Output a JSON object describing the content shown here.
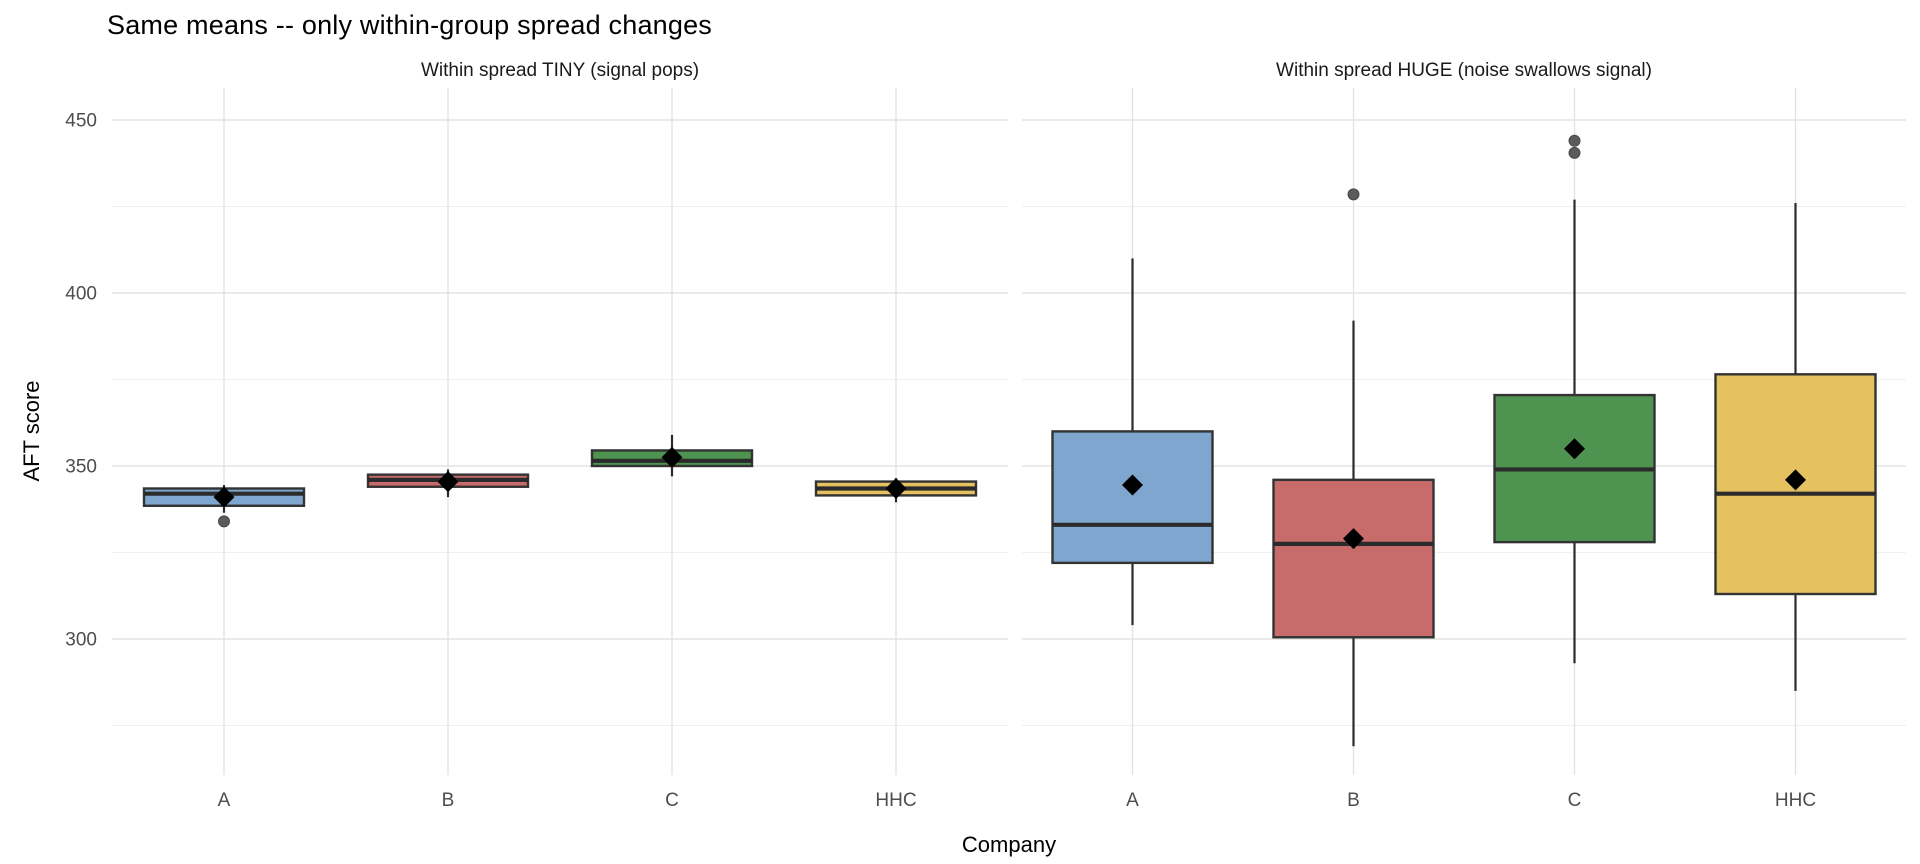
{
  "chart_data": {
    "type": "boxplot",
    "title": "Same means -- only within-group spread changes",
    "xlabel": "Company",
    "ylabel": "AFT score",
    "categories": [
      "A",
      "B",
      "C",
      "HHC"
    ],
    "category_colors": [
      "#7EA6CE",
      "#C86B6B",
      "#4E9350",
      "#E5C160"
    ],
    "y_axis": {
      "major_ticks": [
        450,
        400,
        350,
        300
      ],
      "minor_ticks": [
        425,
        375,
        325,
        275
      ],
      "range": [
        259,
        460
      ],
      "grid": "on",
      "major_grid_color": "#e3e3e3",
      "minor_grid_color": "#f0f0f0"
    },
    "style": {
      "box_stroke": "#333333",
      "median_stroke": "#2b2b2b",
      "whisker_stroke": "#2b2b2b",
      "mean_marker": "black-diamond",
      "mean_color": "#000000",
      "outlier_color": "#5b5b5b"
    },
    "panels": [
      {
        "title": "Within spread TINY (signal pops)",
        "boxes": [
          {
            "company": "A",
            "whisker_low": 336.5,
            "q1": 338.5,
            "median": 342,
            "q3": 343.5,
            "whisker_high": 344.5,
            "mean": 341,
            "outliers": [
              334
            ]
          },
          {
            "company": "B",
            "whisker_low": 341,
            "q1": 344,
            "median": 346,
            "q3": 347.5,
            "whisker_high": 349,
            "mean": 345.5,
            "outliers": []
          },
          {
            "company": "C",
            "whisker_low": 347,
            "q1": 350,
            "median": 351.5,
            "q3": 354.5,
            "whisker_high": 359,
            "mean": 352.5,
            "outliers": []
          },
          {
            "company": "HHC",
            "whisker_low": 339.5,
            "q1": 341.5,
            "median": 343.5,
            "q3": 345.5,
            "whisker_high": 346.5,
            "mean": 343.5,
            "outliers": []
          }
        ]
      },
      {
        "title": "Within spread HUGE (noise swallows signal)",
        "boxes": [
          {
            "company": "A",
            "whisker_low": 304,
            "q1": 322,
            "median": 333,
            "q3": 360,
            "whisker_high": 410,
            "mean": 344.5,
            "outliers": []
          },
          {
            "company": "B",
            "whisker_low": 269,
            "q1": 300.5,
            "median": 327.5,
            "q3": 346,
            "whisker_high": 392,
            "mean": 329,
            "outliers": [
              428.5
            ]
          },
          {
            "company": "C",
            "whisker_low": 293,
            "q1": 328,
            "median": 349,
            "q3": 370.5,
            "whisker_high": 427,
            "mean": 355,
            "outliers": [
              440.5,
              444
            ]
          },
          {
            "company": "HHC",
            "whisker_low": 285,
            "q1": 313,
            "median": 342,
            "q3": 376.5,
            "whisker_high": 426,
            "mean": 346,
            "outliers": []
          }
        ]
      }
    ]
  }
}
